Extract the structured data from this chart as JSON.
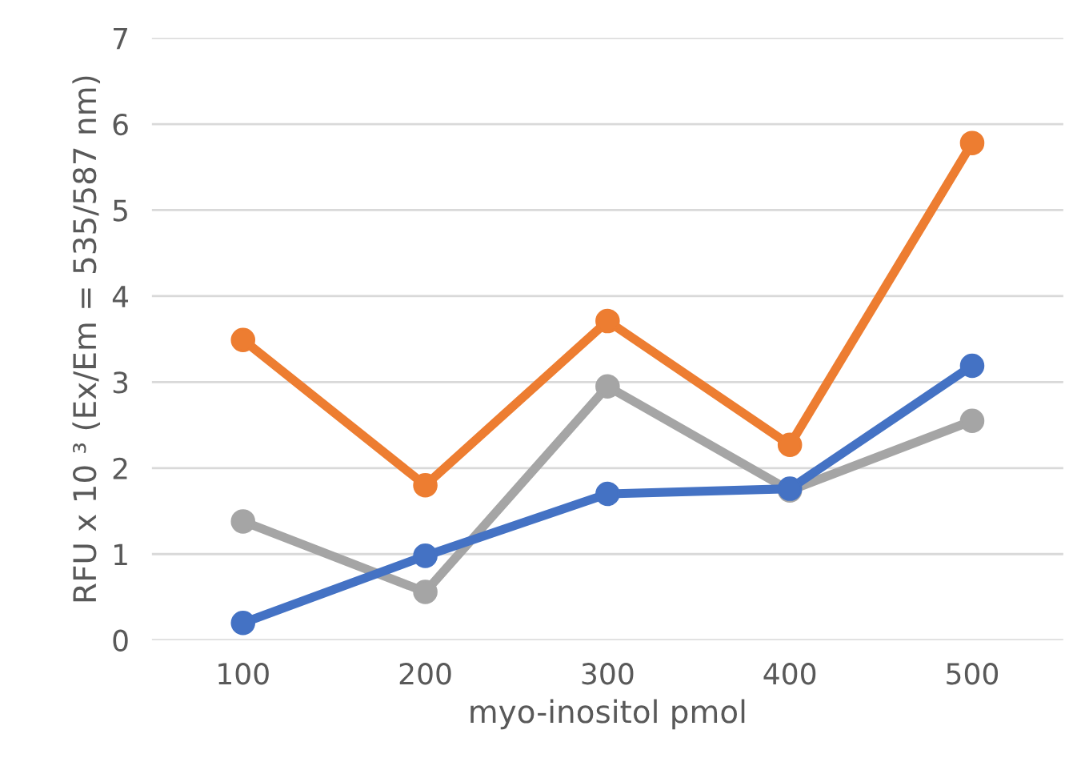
{
  "chart_data": {
    "type": "line",
    "xlabel": "myo-inositol pmol",
    "ylabel": "RFU x 10 ³ (Ex/Em = 535/587 nm)",
    "categories": [
      "100",
      "200",
      "300",
      "400",
      "500"
    ],
    "series": [
      {
        "color": "#4472c4",
        "values": [
          0.2,
          0.98,
          1.7,
          1.76,
          3.19
        ]
      },
      {
        "color": "#ed7d31",
        "values": [
          3.49,
          1.8,
          3.71,
          2.27,
          5.78
        ]
      },
      {
        "color": "#a5a5a5",
        "values": [
          1.38,
          0.56,
          2.95,
          1.74,
          2.55
        ]
      }
    ],
    "ylim": [
      0,
      7
    ],
    "yticks": [
      0,
      1,
      2,
      3,
      4,
      5,
      6,
      7
    ],
    "grid": "y",
    "legend": false,
    "marker": "circle",
    "line_style": "solid"
  }
}
